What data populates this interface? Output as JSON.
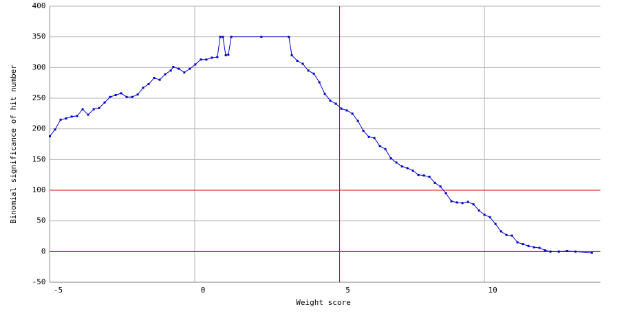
{
  "chart_data": {
    "type": "line",
    "x_label": "Weight score",
    "y_label": "Binomial significance of hit number",
    "x": [
      -5.0,
      -4.82,
      -4.63,
      -4.44,
      -4.25,
      -4.06,
      -3.87,
      -3.68,
      -3.49,
      -3.3,
      -3.11,
      -2.92,
      -2.73,
      -2.54,
      -2.35,
      -2.16,
      -1.97,
      -1.78,
      -1.59,
      -1.4,
      -1.21,
      -1.02,
      -0.83,
      -0.74,
      -0.55,
      -0.36,
      -0.17,
      0.02,
      0.21,
      0.4,
      0.59,
      0.78,
      0.88,
      0.97,
      1.07,
      1.16,
      1.26,
      2.3,
      3.25,
      3.35,
      3.54,
      3.73,
      3.92,
      4.11,
      4.3,
      4.49,
      4.68,
      4.87,
      5.06,
      5.25,
      5.44,
      5.63,
      5.82,
      6.01,
      6.2,
      6.39,
      6.58,
      6.77,
      6.96,
      7.15,
      7.34,
      7.53,
      7.72,
      7.91,
      8.1,
      8.29,
      8.48,
      8.67,
      8.86,
      9.05,
      9.24,
      9.43,
      9.62,
      9.81,
      10.0,
      10.19,
      10.38,
      10.57,
      10.76,
      10.95,
      11.14,
      11.33,
      11.52,
      11.71,
      11.9,
      12.09,
      12.28,
      12.57,
      12.85,
      13.14,
      13.71
    ],
    "values": [
      188,
      199,
      215,
      217,
      220,
      221,
      232,
      223,
      232,
      234,
      243,
      252,
      255,
      258,
      252,
      252,
      256,
      267,
      273,
      283,
      280,
      289,
      295,
      301,
      298,
      292,
      298,
      305,
      313,
      313,
      316,
      317,
      350,
      350,
      320,
      321,
      350,
      350,
      350,
      320,
      311,
      306,
      295,
      290,
      276,
      257,
      246,
      241,
      233,
      230,
      225,
      213,
      197,
      187,
      185,
      172,
      167,
      152,
      145,
      139,
      136,
      132,
      125,
      124,
      122,
      112,
      106,
      95,
      82,
      80,
      79,
      81,
      77,
      67,
      60,
      56,
      45,
      33,
      27,
      26,
      15,
      12,
      9,
      7,
      6,
      2,
      0,
      0,
      1,
      0,
      -2
    ],
    "color": "#0000cc",
    "xlim": [
      -5,
      14
    ],
    "xticks": [
      -5,
      0,
      5,
      10
    ],
    "ylim": [
      -50,
      400
    ],
    "yticks": [
      -50,
      0,
      50,
      100,
      150,
      200,
      250,
      300,
      350,
      400
    ],
    "grid": true,
    "hlines": [
      {
        "value": 100,
        "color": "#e00000"
      },
      {
        "value": 0,
        "color": "#800080"
      }
    ],
    "vlines": [
      {
        "value": 5,
        "color": "#800080"
      }
    ]
  }
}
